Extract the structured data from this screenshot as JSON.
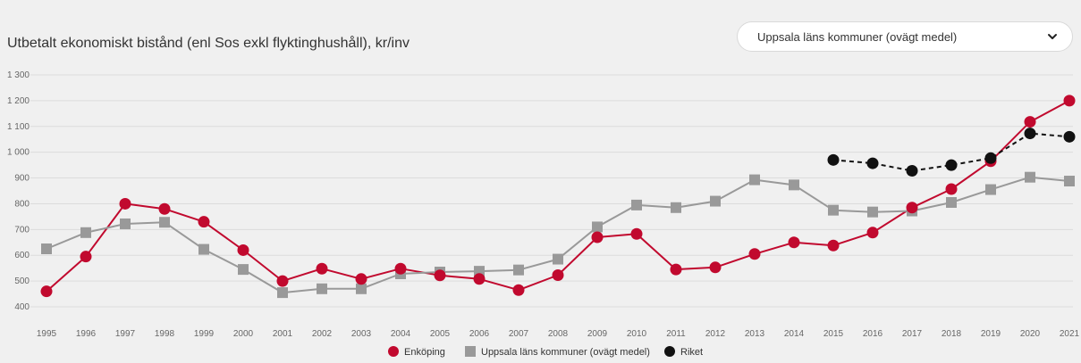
{
  "title": "Utbetalt ekonomiskt bistånd (enl Sos exkl flyktinghushåll), kr/inv",
  "dropdown": {
    "selected": "Uppsala läns kommuner (ovägt medel)"
  },
  "colors": {
    "enkoping": "#c1092e",
    "uppsala": "#999999",
    "riket": "#111111"
  },
  "chart_data": {
    "type": "line",
    "title": "Utbetalt ekonomiskt bistånd (enl Sos exkl flyktinghushåll), kr/inv",
    "ylim": [
      400,
      1300
    ],
    "y_ticks": [
      "400",
      "500",
      "600",
      "700",
      "800",
      "900",
      "1 000",
      "1 100",
      "1 200",
      "1 300"
    ],
    "x": [
      "1995",
      "1996",
      "1997",
      "1998",
      "1999",
      "2000",
      "2001",
      "2002",
      "2003",
      "2004",
      "2005",
      "2006",
      "2007",
      "2008",
      "2009",
      "2010",
      "2011",
      "2012",
      "2013",
      "2014",
      "2015",
      "2016",
      "2017",
      "2018",
      "2019",
      "2020",
      "2021"
    ],
    "grid": true,
    "legend": "bottom",
    "series": [
      {
        "name": "Enköping",
        "marker": "circle",
        "values": [
          460,
          595,
          800,
          780,
          730,
          620,
          500,
          548,
          508,
          548,
          522,
          508,
          465,
          523,
          670,
          683,
          545,
          553,
          605,
          650,
          638,
          688,
          785,
          857,
          965,
          1118,
          1200
        ]
      },
      {
        "name": "Uppsala läns kommuner (ovägt medel)",
        "marker": "square",
        "values": [
          625,
          688,
          722,
          728,
          623,
          545,
          455,
          470,
          470,
          528,
          535,
          538,
          543,
          585,
          710,
          795,
          785,
          810,
          893,
          873,
          775,
          768,
          772,
          805,
          855,
          903,
          888
        ]
      },
      {
        "name": "Riket",
        "marker": "circle",
        "dashed": true,
        "values": [
          null,
          null,
          null,
          null,
          null,
          null,
          null,
          null,
          null,
          null,
          null,
          null,
          null,
          null,
          null,
          null,
          null,
          null,
          null,
          null,
          970,
          957,
          928,
          950,
          977,
          1073,
          1060
        ]
      }
    ]
  }
}
